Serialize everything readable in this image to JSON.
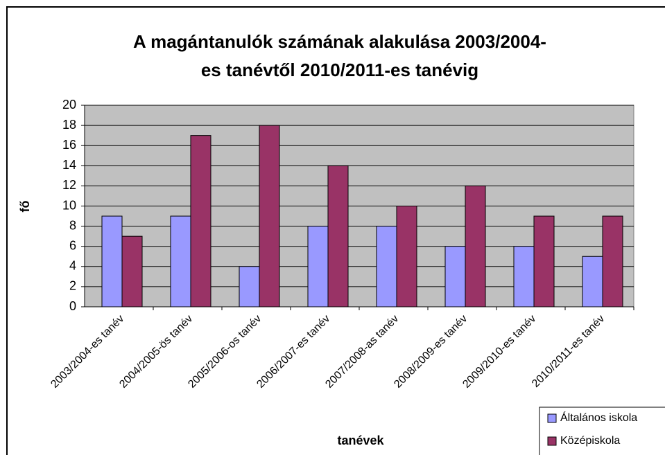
{
  "chart_data": {
    "type": "bar",
    "title": [
      "A magántanulók számának alakulása 2003/2004-",
      "es tanévtől 2010/2011-es tanévig"
    ],
    "x_label": "tanévek",
    "y_label": "fő",
    "categories": [
      "2003/2004-es tanév",
      "2004/2005-ös tanév",
      "2005/2006-os tanév",
      "2006/2007-es tanév",
      "2007/2008-as tanév",
      "2008/2009-es tanév",
      "2009/2010-es tanév",
      "2010/2011-es tanév"
    ],
    "series": [
      {
        "name": "Általános iskola",
        "color": "#9999ff",
        "values": [
          9,
          9,
          4,
          8,
          8,
          6,
          6,
          5
        ]
      },
      {
        "name": "Középiskola",
        "color": "#993366",
        "values": [
          7,
          17,
          18,
          14,
          10,
          12,
          9,
          9
        ]
      }
    ],
    "ylim": [
      0,
      20
    ],
    "yticks": [
      0,
      2,
      4,
      6,
      8,
      10,
      12,
      14,
      16,
      18,
      20
    ],
    "grid": true,
    "legend": "bottom-right"
  }
}
